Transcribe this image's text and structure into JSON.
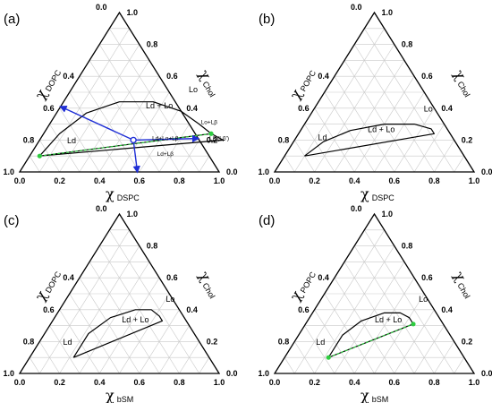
{
  "chart_data": [
    {
      "type": "ternary",
      "panel_label": "(a)",
      "axes": {
        "bottom": {
          "symbol": "χ",
          "subscript": "DSPC"
        },
        "left": {
          "symbol": "χ",
          "subscript": "DOPC"
        },
        "right": {
          "symbol": "χ",
          "subscript": "Chol"
        }
      },
      "ticks": {
        "apex_labels": [
          "0.0",
          "1.0"
        ],
        "bottom": [
          "0.0",
          "0.2",
          "0.4",
          "0.6",
          "0.8",
          "1.0"
        ],
        "left": [
          "0.4",
          "0.6",
          "0.8",
          "1.0"
        ],
        "right": [
          "0.8",
          "0.6",
          "0.4",
          "0.2",
          "0.0"
        ]
      },
      "regions": [
        {
          "label": "Ld + Lo",
          "a": 0.5,
          "c": 0.4
        },
        {
          "label": "Lo",
          "a": 0.62,
          "c": 0.5
        },
        {
          "label": "Ld",
          "a": 0.17,
          "c": 0.18
        },
        {
          "label": "Lo+Lβ",
          "a": 0.8,
          "c": 0.3,
          "small": true
        },
        {
          "label": "Ld+Lo+Lβ",
          "a": 0.63,
          "c": 0.2,
          "small": true
        },
        {
          "label": "Lβ (Lβ')",
          "a": 0.9,
          "c": 0.2,
          "small": true
        },
        {
          "label": "Ld+Lβ",
          "a": 0.68,
          "c": 0.1,
          "small": true
        }
      ],
      "boundary_curve": [
        [
          0.05,
          0.1
        ],
        [
          0.08,
          0.24
        ],
        [
          0.15,
          0.37
        ],
        [
          0.28,
          0.44
        ],
        [
          0.45,
          0.44
        ],
        [
          0.62,
          0.38
        ],
        [
          0.75,
          0.3
        ],
        [
          0.84,
          0.24
        ]
      ],
      "three_phase_triangle": [
        [
          0.05,
          0.1
        ],
        [
          0.84,
          0.24
        ],
        [
          0.92,
          0.2
        ]
      ],
      "tie_lines": [
        [
          [
            0.05,
            0.1
          ],
          [
            0.84,
            0.24
          ]
        ]
      ],
      "blue_arrows": [
        {
          "from": [
            0.47,
            0.2
          ],
          "to": [
            0.0,
            0.41
          ]
        },
        {
          "from": [
            0.47,
            0.2
          ],
          "to": [
            0.59,
            0.0
          ]
        },
        {
          "from": [
            0.47,
            0.2
          ],
          "to": [
            0.79,
            0.21
          ]
        }
      ],
      "center_point": [
        0.47,
        0.2
      ]
    },
    {
      "type": "ternary",
      "panel_label": "(b)",
      "axes": {
        "bottom": {
          "symbol": "χ",
          "subscript": "DSPC"
        },
        "left": {
          "symbol": "χ",
          "subscript": "POPC"
        },
        "right": {
          "symbol": "χ",
          "subscript": "Chol"
        }
      },
      "ticks": {
        "apex_labels": [
          "0.0",
          "1.0"
        ],
        "bottom": [
          "0.0",
          "0.2",
          "0.4",
          "0.6",
          "0.8",
          "1.0"
        ],
        "left": [
          "0.4",
          "0.6",
          "0.8",
          "1.0"
        ],
        "right": [
          "0.8",
          "0.6",
          "0.4",
          "0.2",
          "0.0"
        ]
      },
      "regions": [
        {
          "label": "Ld + Lo",
          "a": 0.41,
          "c": 0.25
        },
        {
          "label": "Lo",
          "a": 0.58,
          "c": 0.38
        },
        {
          "label": "Ld",
          "a": 0.14,
          "c": 0.2
        }
      ],
      "boundary_curve": [
        [
          0.1,
          0.1
        ],
        [
          0.15,
          0.19
        ],
        [
          0.25,
          0.26
        ],
        [
          0.4,
          0.3
        ],
        [
          0.55,
          0.3
        ],
        [
          0.65,
          0.27
        ],
        [
          0.68,
          0.24
        ],
        [
          0.1,
          0.1
        ]
      ],
      "tie_lines": []
    },
    {
      "type": "ternary",
      "panel_label": "(c)",
      "axes": {
        "bottom": {
          "symbol": "χ",
          "subscript": "bSM"
        },
        "left": {
          "symbol": "χ",
          "subscript": "DOPC"
        },
        "right": {
          "symbol": "χ",
          "subscript": "Chol"
        }
      },
      "ticks": {
        "apex_labels": [
          "0.0",
          "1.0"
        ],
        "bottom": [
          "0.0",
          "0.2",
          "0.4",
          "0.6",
          "0.8",
          "1.0"
        ],
        "left": [
          "0.4",
          "0.6",
          "0.8",
          "1.0"
        ],
        "right": [
          "0.8",
          "0.6",
          "0.4",
          "0.2",
          "0.0"
        ]
      },
      "regions": [
        {
          "label": "Ld + Lo",
          "a": 0.42,
          "c": 0.32
        },
        {
          "label": "Lo",
          "a": 0.53,
          "c": 0.45
        },
        {
          "label": "Ld",
          "a": 0.15,
          "c": 0.18
        }
      ],
      "boundary_curve": [
        [
          0.22,
          0.1
        ],
        [
          0.22,
          0.25
        ],
        [
          0.28,
          0.35
        ],
        [
          0.38,
          0.4
        ],
        [
          0.46,
          0.4
        ],
        [
          0.52,
          0.36
        ],
        [
          0.55,
          0.33
        ],
        [
          0.22,
          0.1
        ]
      ],
      "tie_lines": []
    },
    {
      "type": "ternary",
      "panel_label": "(d)",
      "axes": {
        "bottom": {
          "symbol": "χ",
          "subscript": "bSM"
        },
        "left": {
          "symbol": "χ",
          "subscript": "POPC"
        },
        "right": {
          "symbol": "χ",
          "subscript": "Chol"
        }
      },
      "ticks": {
        "apex_labels": [
          "0.0",
          "1.0"
        ],
        "bottom": [
          "0.0",
          "0.2",
          "0.4",
          "0.6",
          "0.8",
          "1.0"
        ],
        "left": [
          "0.4",
          "0.6",
          "0.8",
          "1.0"
        ],
        "right": [
          "0.8",
          "0.6",
          "0.4",
          "0.2",
          "0.0"
        ]
      },
      "regions": [
        {
          "label": "Ld + Lo",
          "a": 0.41,
          "c": 0.32
        },
        {
          "label": "Lo",
          "a": 0.52,
          "c": 0.45
        },
        {
          "label": "Ld",
          "a": 0.14,
          "c": 0.18
        }
      ],
      "boundary_curve": [
        [
          0.22,
          0.1
        ],
        [
          0.22,
          0.24
        ],
        [
          0.27,
          0.33
        ],
        [
          0.36,
          0.38
        ],
        [
          0.44,
          0.38
        ],
        [
          0.5,
          0.35
        ],
        [
          0.54,
          0.31
        ],
        [
          0.22,
          0.1
        ]
      ],
      "tie_lines": [
        [
          [
            0.22,
            0.1
          ],
          [
            0.54,
            0.31
          ]
        ]
      ]
    }
  ],
  "colors": {
    "tie_line": "#2ecc40",
    "arrow": "#1f2fd6",
    "frame": "#000000",
    "grid": "#c9c9c9"
  }
}
